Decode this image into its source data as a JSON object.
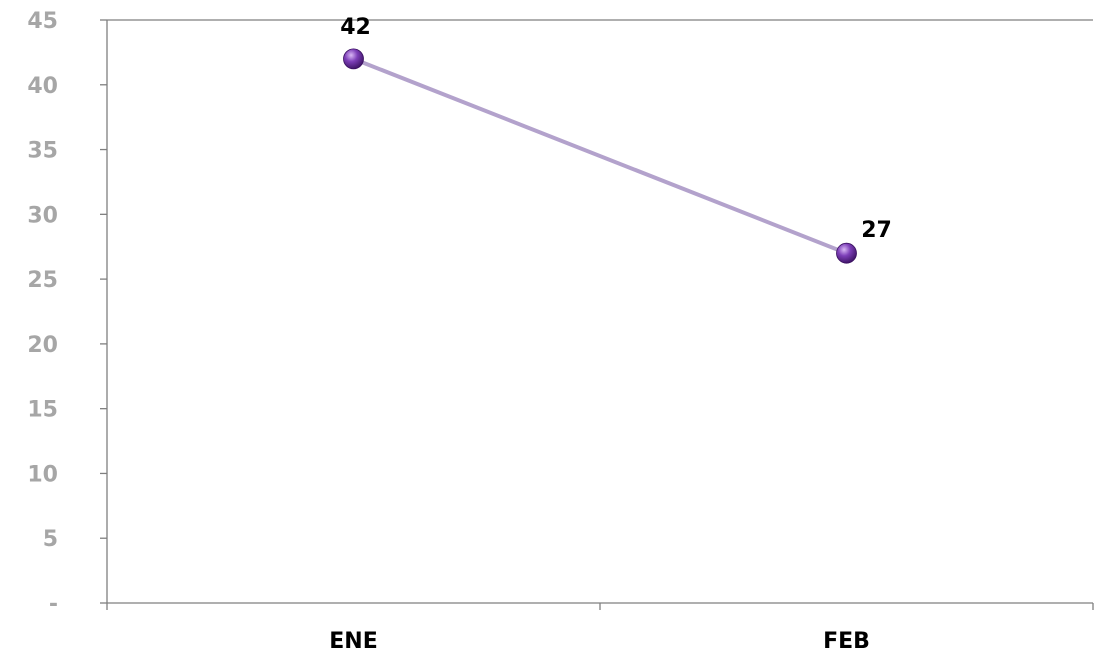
{
  "chart_data": {
    "type": "line",
    "title": "",
    "xlabel": "",
    "ylabel": "",
    "categories": [
      "ENE",
      "FEB"
    ],
    "series": [
      {
        "values": [
          42,
          27
        ],
        "data_labels": [
          "42",
          "27"
        ]
      }
    ],
    "ylim": [
      0,
      45
    ],
    "y_ticks": [
      0,
      5,
      10,
      15,
      20,
      25,
      30,
      35,
      40,
      45
    ],
    "y_tick_labels": [
      "-",
      "5",
      "10",
      "15",
      "20",
      "25",
      "30",
      "35",
      "40",
      "45"
    ],
    "grid": false,
    "legend": "none",
    "colors": {
      "line": "#b3a2cc",
      "marker": "#6a2fa0",
      "marker_highlight": "#c7a3ea",
      "axis": "#7f7f7f",
      "y_tick_text": "#a6a6a6",
      "x_tick_text": "#000000",
      "data_label_text": "#000000"
    }
  }
}
